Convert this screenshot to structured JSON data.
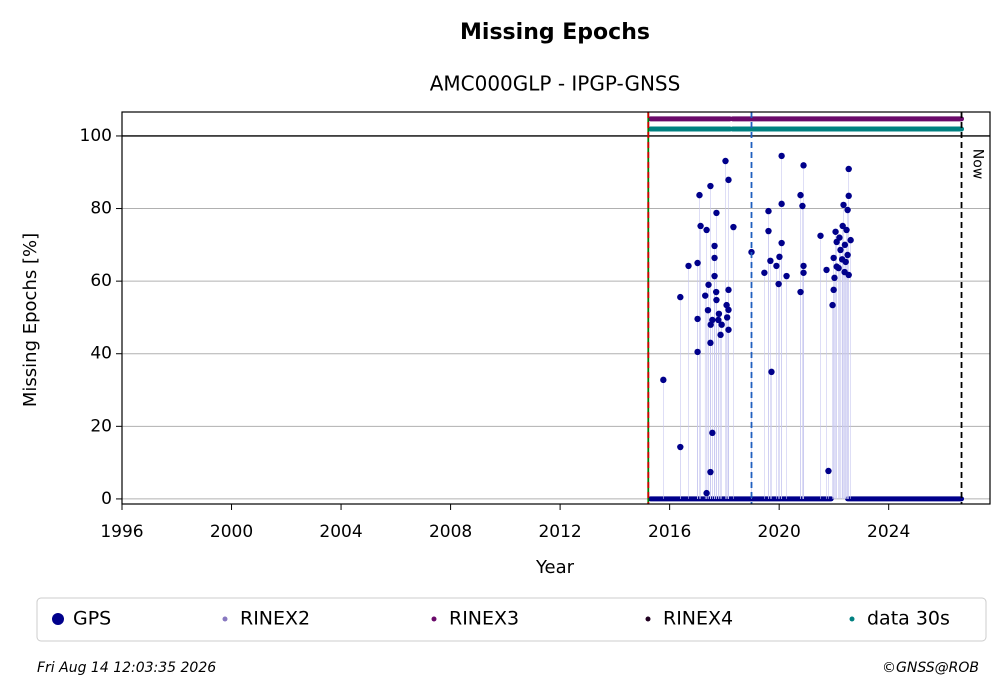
{
  "chart_data": {
    "type": "scatter",
    "title": "Missing Epochs",
    "subtitle": "AMC000GLP - IPGP-GNSS",
    "x_label": "Year",
    "y_label": "Missing Epochs [%]",
    "xlim": [
      1996,
      2027.7
    ],
    "ylim": [
      -1.4,
      106.6
    ],
    "xticks": [
      1996,
      2000,
      2004,
      2008,
      2012,
      2016,
      2020,
      2024
    ],
    "yticks": [
      0,
      20,
      40,
      60,
      80,
      100
    ],
    "grid": true,
    "hline": 100,
    "vlines": [
      {
        "x": 2015.22,
        "color": "#008000",
        "dashed": false
      },
      {
        "x": 2015.22,
        "color": "#d00000",
        "dashed": true
      },
      {
        "x": 2018.99,
        "color": "#1f5fbf",
        "dashed": true
      },
      {
        "x": 2026.66,
        "color": "#000000",
        "dashed": true,
        "label": "Now"
      }
    ],
    "series": [
      {
        "name": "GPS",
        "color": "#00008b",
        "x": [
          2015.77,
          2016.39,
          2016.39,
          2016.69,
          2017.02,
          2017.02,
          2017.02,
          2017.09,
          2017.13,
          2017.35,
          2017.35,
          2017.49,
          2017.49,
          2017.42,
          2017.49,
          2017.56,
          2017.56,
          2017.64,
          2017.64,
          2017.64,
          2017.71,
          2017.71,
          2017.78,
          2017.86,
          2018.04,
          2018.15,
          2018.15,
          2018.15,
          2018.15,
          2018.08,
          2018.33,
          2018.99,
          2019.46,
          2019.61,
          2019.61,
          2019.68,
          2019.72,
          2019.9,
          2019.98,
          2020.01,
          2020.09,
          2020.09,
          2020.09,
          2020.27,
          2020.78,
          2020.78,
          2020.85,
          2020.89,
          2020.89,
          2020.89,
          2021.51,
          2021.73,
          2021.8,
          2021.95,
          2021.99,
          2022.02,
          2021.99,
          2022.06,
          2022.1,
          2022.17,
          2022.24,
          2022.32,
          2022.35,
          2022.43,
          2022.46,
          2022.5,
          2022.54,
          2022.54,
          2022.5,
          2022.54,
          2022.39,
          2022.61,
          2017.3,
          2017.4,
          2017.5,
          2017.8,
          2017.9,
          2018.1,
          2017.7,
          2022.2,
          2022.3,
          2022.4,
          2022.1
        ],
        "values": [
          32.8,
          55.6,
          14.3,
          64.2,
          65.0,
          49.6,
          40.5,
          83.7,
          75.2,
          74.1,
          1.6,
          86.2,
          7.4,
          59.0,
          43.0,
          18.2,
          49.3,
          69.7,
          66.4,
          61.4,
          78.8,
          54.8,
          49.3,
          45.2,
          93.1,
          87.9,
          57.6,
          52.1,
          46.6,
          53.4,
          74.9,
          68.0,
          62.3,
          79.3,
          73.8,
          65.6,
          35.0,
          64.2,
          59.2,
          66.7,
          94.5,
          81.3,
          70.5,
          61.4,
          83.7,
          57.0,
          80.7,
          91.9,
          64.2,
          62.3,
          72.5,
          63.1,
          7.7,
          53.4,
          57.6,
          60.9,
          66.4,
          73.6,
          70.8,
          63.6,
          68.6,
          75.2,
          81.0,
          65.3,
          74.1,
          79.6,
          83.5,
          90.9,
          67.2,
          61.7,
          62.5,
          71.3,
          56.0,
          52.0,
          48.0,
          51.0,
          48.0,
          50.0,
          57.0,
          72.0,
          66.0,
          70.0,
          64.0
        ],
        "baseline": 0,
        "baseline_segments": [
          [
            2015.3,
            2021.9
          ],
          [
            2022.5,
            2026.66
          ]
        ]
      },
      {
        "name": "RINEX2",
        "color": "#8878c0"
      },
      {
        "name": "RINEX3",
        "color": "#6a0a6a",
        "level": 104.7,
        "segments": [
          [
            2015.3,
            2018.2
          ],
          [
            2018.3,
            2026.66
          ]
        ]
      },
      {
        "name": "RINEX4",
        "color": "#200020"
      },
      {
        "name": "data 30s",
        "color": "#008080",
        "level": 101.9,
        "segments": [
          [
            2015.3,
            2018.2
          ],
          [
            2018.3,
            2026.66
          ]
        ]
      }
    ]
  },
  "footer": {
    "timestamp": "Fri Aug 14 12:03:35 2026",
    "copyright": "©GNSS@ROB"
  }
}
